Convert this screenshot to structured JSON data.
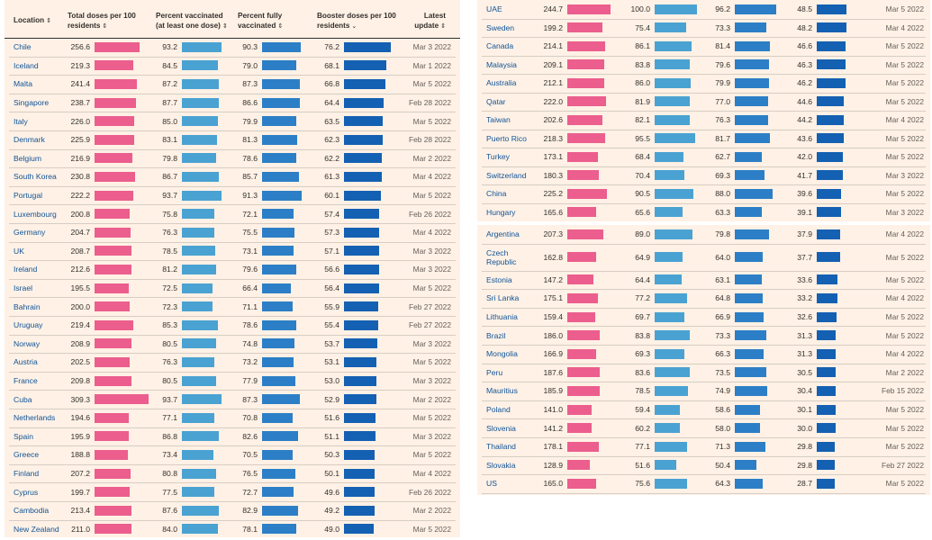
{
  "headers": {
    "location": "Location",
    "total": "Total doses per 100 residents",
    "partial": "Percent vaccinated (at least one dose)",
    "full": "Percent fully vaccinated",
    "booster": "Booster doses per 100 residents",
    "update": "Latest update"
  },
  "sort_icons": {
    "neutral": "⇕",
    "active": "⌄"
  },
  "colors": {
    "total": "#eb5e8d",
    "partial": "#4aa2d2",
    "full": "#2c7fc6",
    "booster": "#1460b2",
    "location_link": "#0f5499",
    "panel_bg": "#fff1e5"
  },
  "chart_data": {
    "type": "table",
    "columns": [
      "Location",
      "Total doses per 100 residents",
      "Percent vaccinated (at least one dose)",
      "Percent fully vaccinated",
      "Booster doses per 100 residents",
      "Latest update"
    ],
    "sort_column": "Booster doses per 100 residents",
    "panels": [
      {
        "id": "left",
        "show_header": true,
        "rows": [
          {
            "location": "Chile",
            "total": 256.6,
            "partial": 93.2,
            "full": 90.3,
            "booster": 76.2,
            "update": "Mar 3 2022"
          },
          {
            "location": "Iceland",
            "total": 219.3,
            "partial": 84.5,
            "full": 79.0,
            "booster": 68.1,
            "update": "Mar 1 2022"
          },
          {
            "location": "Malta",
            "total": 241.4,
            "partial": 87.2,
            "full": 87.3,
            "booster": 66.8,
            "update": "Mar 5 2022"
          },
          {
            "location": "Singapore",
            "total": 238.7,
            "partial": 87.7,
            "full": 86.6,
            "booster": 64.4,
            "update": "Feb 28 2022"
          },
          {
            "location": "Italy",
            "total": 226.0,
            "partial": 85.0,
            "full": 79.9,
            "booster": 63.5,
            "update": "Mar 5 2022"
          },
          {
            "location": "Denmark",
            "total": 225.9,
            "partial": 83.1,
            "full": 81.3,
            "booster": 62.3,
            "update": "Feb 28 2022"
          },
          {
            "location": "Belgium",
            "total": 216.9,
            "partial": 79.8,
            "full": 78.6,
            "booster": 62.2,
            "update": "Mar 2 2022"
          },
          {
            "location": "South Korea",
            "total": 230.8,
            "partial": 86.7,
            "full": 85.7,
            "booster": 61.3,
            "update": "Mar 4 2022"
          },
          {
            "location": "Portugal",
            "total": 222.2,
            "partial": 93.7,
            "full": 91.3,
            "booster": 60.1,
            "update": "Mar 5 2022"
          },
          {
            "location": "Luxembourg",
            "total": 200.8,
            "partial": 75.8,
            "full": 72.1,
            "booster": 57.4,
            "update": "Feb 26 2022"
          },
          {
            "location": "Germany",
            "total": 204.7,
            "partial": 76.3,
            "full": 75.5,
            "booster": 57.3,
            "update": "Mar 4 2022"
          },
          {
            "location": "UK",
            "total": 208.7,
            "partial": 78.5,
            "full": 73.1,
            "booster": 57.1,
            "update": "Mar 3 2022"
          },
          {
            "location": "Ireland",
            "total": 212.6,
            "partial": 81.2,
            "full": 79.6,
            "booster": 56.6,
            "update": "Mar 3 2022"
          },
          {
            "location": "Israel",
            "total": 195.5,
            "partial": 72.5,
            "full": 66.4,
            "booster": 56.4,
            "update": "Mar 5 2022"
          },
          {
            "location": "Bahrain",
            "total": 200.0,
            "partial": 72.3,
            "full": 71.1,
            "booster": 55.9,
            "update": "Feb 27 2022"
          },
          {
            "location": "Uruguay",
            "total": 219.4,
            "partial": 85.3,
            "full": 78.6,
            "booster": 55.4,
            "update": "Feb 27 2022"
          },
          {
            "location": "Norway",
            "total": 208.9,
            "partial": 80.5,
            "full": 74.8,
            "booster": 53.7,
            "update": "Mar 3 2022"
          },
          {
            "location": "Austria",
            "total": 202.5,
            "partial": 76.3,
            "full": 73.2,
            "booster": 53.1,
            "update": "Mar 5 2022"
          },
          {
            "location": "France",
            "total": 209.8,
            "partial": 80.5,
            "full": 77.9,
            "booster": 53.0,
            "update": "Mar 3 2022"
          },
          {
            "location": "Cuba",
            "total": 309.3,
            "partial": 93.7,
            "full": 87.3,
            "booster": 52.9,
            "update": "Mar 2 2022"
          },
          {
            "location": "Netherlands",
            "total": 194.6,
            "partial": 77.1,
            "full": 70.8,
            "booster": 51.6,
            "update": "Mar 5 2022"
          },
          {
            "location": "Spain",
            "total": 195.9,
            "partial": 86.8,
            "full": 82.6,
            "booster": 51.1,
            "update": "Mar 3 2022"
          },
          {
            "location": "Greece",
            "total": 188.8,
            "partial": 73.4,
            "full": 70.5,
            "booster": 50.3,
            "update": "Mar 5 2022"
          },
          {
            "location": "Finland",
            "total": 207.2,
            "partial": 80.8,
            "full": 76.5,
            "booster": 50.1,
            "update": "Mar 4 2022"
          },
          {
            "location": "Cyprus",
            "total": 199.7,
            "partial": 77.5,
            "full": 72.7,
            "booster": 49.6,
            "update": "Feb 26 2022"
          },
          {
            "location": "Cambodia",
            "total": 213.4,
            "partial": 87.6,
            "full": 82.9,
            "booster": 49.2,
            "update": "Mar 2 2022"
          },
          {
            "location": "New Zealand",
            "total": 211.0,
            "partial": 84.0,
            "full": 78.1,
            "booster": 49.0,
            "update": "Mar 5 2022"
          }
        ]
      },
      {
        "id": "right-top",
        "show_header": false,
        "rows": [
          {
            "location": "UAE",
            "total": 244.7,
            "partial": 100.0,
            "full": 96.2,
            "booster": 48.5,
            "update": "Mar 5 2022"
          },
          {
            "location": "Sweden",
            "total": 199.2,
            "partial": 75.4,
            "full": 73.3,
            "booster": 48.2,
            "update": "Mar 4 2022"
          },
          {
            "location": "Canada",
            "total": 214.1,
            "partial": 86.1,
            "full": 81.4,
            "booster": 46.6,
            "update": "Mar 5 2022"
          },
          {
            "location": "Malaysia",
            "total": 209.1,
            "partial": 83.8,
            "full": 79.6,
            "booster": 46.3,
            "update": "Mar 5 2022"
          },
          {
            "location": "Australia",
            "total": 212.1,
            "partial": 86.0,
            "full": 79.9,
            "booster": 46.2,
            "update": "Mar 5 2022"
          },
          {
            "location": "Qatar",
            "total": 222.0,
            "partial": 81.9,
            "full": 77.0,
            "booster": 44.6,
            "update": "Mar 5 2022"
          },
          {
            "location": "Taiwan",
            "total": 202.6,
            "partial": 82.1,
            "full": 76.3,
            "booster": 44.2,
            "update": "Mar 4 2022"
          },
          {
            "location": "Puerto Rico",
            "total": 218.3,
            "partial": 95.5,
            "full": 81.7,
            "booster": 43.6,
            "update": "Mar 5 2022"
          },
          {
            "location": "Turkey",
            "total": 173.1,
            "partial": 68.4,
            "full": 62.7,
            "booster": 42.0,
            "update": "Mar 5 2022"
          },
          {
            "location": "Switzerland",
            "total": 180.3,
            "partial": 70.4,
            "full": 69.3,
            "booster": 41.7,
            "update": "Mar 3 2022"
          },
          {
            "location": "China",
            "total": 225.2,
            "partial": 90.5,
            "full": 88.0,
            "booster": 39.6,
            "update": "Mar 5 2022"
          },
          {
            "location": "Hungary",
            "total": 165.6,
            "partial": 65.6,
            "full": 63.3,
            "booster": 39.1,
            "update": "Mar 3 2022"
          }
        ]
      },
      {
        "id": "right-bottom",
        "show_header": false,
        "rows": [
          {
            "location": "Argentina",
            "total": 207.3,
            "partial": 89.0,
            "full": 79.8,
            "booster": 37.9,
            "update": "Mar 4 2022"
          },
          {
            "location": "Czech Republic",
            "total": 162.8,
            "partial": 64.9,
            "full": 64.0,
            "booster": 37.7,
            "update": "Mar 5 2022"
          },
          {
            "location": "Estonia",
            "total": 147.2,
            "partial": 64.4,
            "full": 63.1,
            "booster": 33.6,
            "update": "Mar 5 2022"
          },
          {
            "location": "Sri Lanka",
            "total": 175.1,
            "partial": 77.2,
            "full": 64.8,
            "booster": 33.2,
            "update": "Mar 4 2022"
          },
          {
            "location": "Lithuania",
            "total": 159.4,
            "partial": 69.7,
            "full": 66.9,
            "booster": 32.6,
            "update": "Mar 5 2022"
          },
          {
            "location": "Brazil",
            "total": 186.0,
            "partial": 83.8,
            "full": 73.3,
            "booster": 31.3,
            "update": "Mar 5 2022"
          },
          {
            "location": "Mongolia",
            "total": 166.9,
            "partial": 69.3,
            "full": 66.3,
            "booster": 31.3,
            "update": "Mar 4 2022"
          },
          {
            "location": "Peru",
            "total": 187.6,
            "partial": 83.6,
            "full": 73.5,
            "booster": 30.5,
            "update": "Mar 2 2022"
          },
          {
            "location": "Mauritius",
            "total": 185.9,
            "partial": 78.5,
            "full": 74.9,
            "booster": 30.4,
            "update": "Feb 15 2022"
          },
          {
            "location": "Poland",
            "total": 141.0,
            "partial": 59.4,
            "full": 58.6,
            "booster": 30.1,
            "update": "Mar 5 2022"
          },
          {
            "location": "Slovenia",
            "total": 141.2,
            "partial": 60.2,
            "full": 58.0,
            "booster": 30.0,
            "update": "Mar 5 2022"
          },
          {
            "location": "Thailand",
            "total": 178.1,
            "partial": 77.1,
            "full": 71.3,
            "booster": 29.8,
            "update": "Mar 5 2022"
          },
          {
            "location": "Slovakia",
            "total": 128.9,
            "partial": 51.6,
            "full": 50.4,
            "booster": 29.8,
            "update": "Feb 27 2022"
          },
          {
            "location": "US",
            "total": 165.0,
            "partial": 75.6,
            "full": 64.3,
            "booster": 28.7,
            "update": "Mar 5 2022"
          }
        ]
      }
    ]
  }
}
